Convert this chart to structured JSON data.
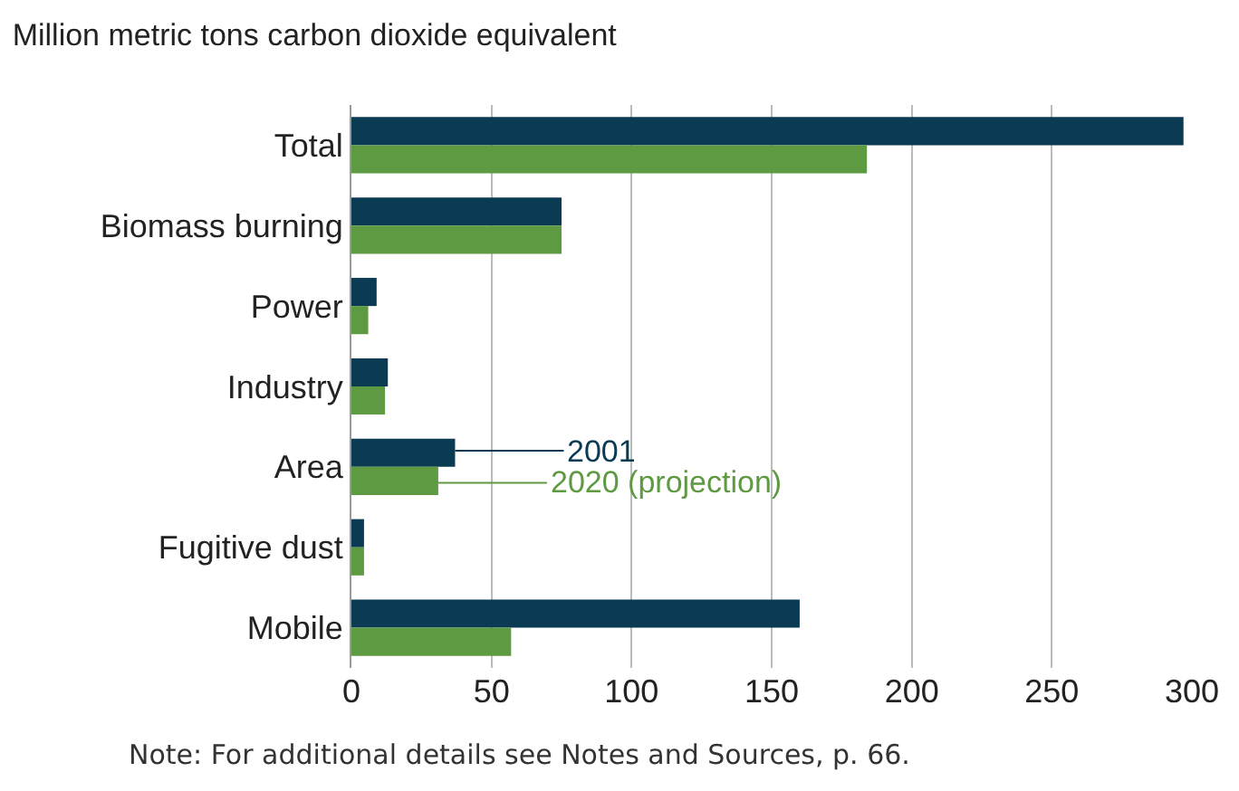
{
  "chart_data": {
    "type": "bar",
    "orientation": "horizontal",
    "title": "Million metric tons carbon dioxide equivalent",
    "categories": [
      "Total",
      "Biomass burning",
      "Power",
      "Industry",
      "Area",
      "Fugitive dust",
      "Mobile"
    ],
    "series": [
      {
        "name": "2001",
        "color": "#0b3a53",
        "values": [
          297,
          75,
          9,
          13,
          37,
          4.5,
          160
        ]
      },
      {
        "name": "2020 (projection)",
        "color": "#5e9a41",
        "values": [
          184,
          75,
          6,
          12,
          31,
          4.5,
          57
        ]
      }
    ],
    "xlim": [
      0,
      300
    ],
    "xticks": [
      0,
      50,
      100,
      150,
      200,
      250,
      300
    ],
    "grid": "x",
    "legend": "center",
    "annotations": [
      "Note: For additional details see Notes and Sources, p. 66."
    ]
  }
}
